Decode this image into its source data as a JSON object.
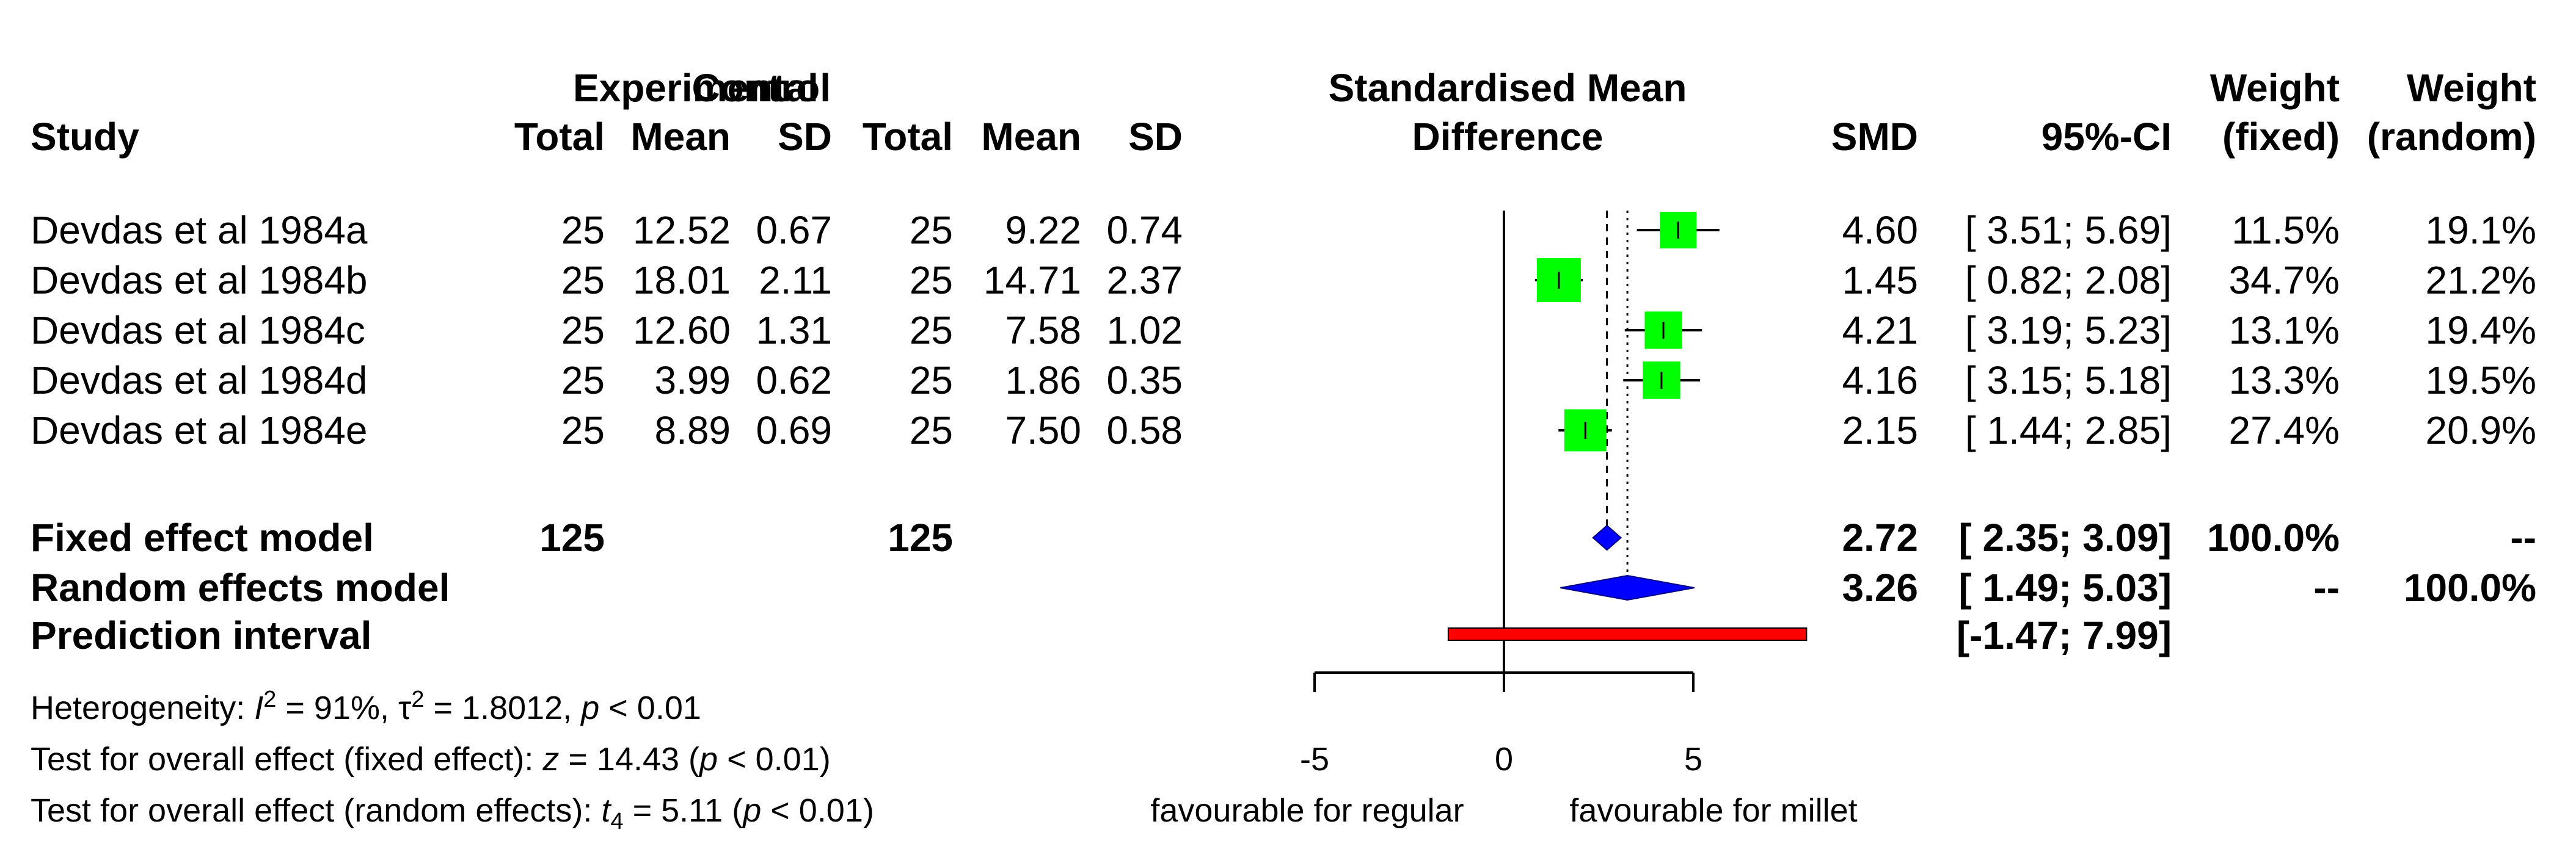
{
  "header": {
    "study": "Study",
    "experimental": "Experimental",
    "control": "Control",
    "total": "Total",
    "mean": "Mean",
    "sd": "SD",
    "smd_title_1": "Standardised Mean",
    "smd_title_2": "Difference",
    "smd": "SMD",
    "ci": "95%-CI",
    "weight": "Weight",
    "fixed": "(fixed)",
    "random": "(random)"
  },
  "chart_data": {
    "type": "forest",
    "xlim": [
      -5,
      8
    ],
    "axis_ticks": [
      -5,
      0,
      5
    ],
    "axis_tick_labels": [
      "-5",
      "0",
      "5"
    ],
    "reference_line": 0,
    "label_left": "favourable for regular",
    "label_right": "favourable for millet",
    "studies": [
      {
        "name": "Devdas et al 1984a",
        "e_total": "25",
        "e_mean": "12.52",
        "e_sd": "0.67",
        "c_total": "25",
        "c_mean": "9.22",
        "c_sd": "0.74",
        "smd": 4.6,
        "lower": 3.51,
        "upper": 5.69,
        "smd_label": "4.60",
        "ci_label": "[ 3.51; 5.69]",
        "w_fixed": "11.5%",
        "w_random": "19.1%",
        "weight_fixed": 11.5
      },
      {
        "name": "Devdas et al 1984b",
        "e_total": "25",
        "e_mean": "18.01",
        "e_sd": "2.11",
        "c_total": "25",
        "c_mean": "14.71",
        "c_sd": "2.37",
        "smd": 1.45,
        "lower": 0.82,
        "upper": 2.08,
        "smd_label": "1.45",
        "ci_label": "[ 0.82; 2.08]",
        "w_fixed": "34.7%",
        "w_random": "21.2%",
        "weight_fixed": 34.7
      },
      {
        "name": "Devdas et al 1984c",
        "e_total": "25",
        "e_mean": "12.60",
        "e_sd": "1.31",
        "c_total": "25",
        "c_mean": "7.58",
        "c_sd": "1.02",
        "smd": 4.21,
        "lower": 3.19,
        "upper": 5.23,
        "smd_label": "4.21",
        "ci_label": "[ 3.19; 5.23]",
        "w_fixed": "13.1%",
        "w_random": "19.4%",
        "weight_fixed": 13.1
      },
      {
        "name": "Devdas et al 1984d",
        "e_total": "25",
        "e_mean": "3.99",
        "e_sd": "0.62",
        "c_total": "25",
        "c_mean": "1.86",
        "c_sd": "0.35",
        "smd": 4.16,
        "lower": 3.15,
        "upper": 5.18,
        "smd_label": "4.16",
        "ci_label": "[ 3.15; 5.18]",
        "w_fixed": "13.3%",
        "w_random": "19.5%",
        "weight_fixed": 13.3
      },
      {
        "name": "Devdas et al 1984e",
        "e_total": "25",
        "e_mean": "8.89",
        "e_sd": "0.69",
        "c_total": "25",
        "c_mean": "7.50",
        "c_sd": "0.58",
        "smd": 2.15,
        "lower": 1.44,
        "upper": 2.85,
        "smd_label": "2.15",
        "ci_label": "[ 1.44; 2.85]",
        "w_fixed": "27.4%",
        "w_random": "20.9%",
        "weight_fixed": 27.4
      }
    ],
    "fixed": {
      "name": "Fixed effect model",
      "e_total": "125",
      "c_total": "125",
      "smd": 2.72,
      "lower": 2.35,
      "upper": 3.09,
      "smd_label": "2.72",
      "ci_label": "[ 2.35; 3.09]",
      "w_fixed": "100.0%",
      "w_random": "--"
    },
    "random": {
      "name": "Random effects model",
      "smd": 3.26,
      "lower": 1.49,
      "upper": 5.03,
      "smd_label": "3.26",
      "ci_label": "[ 1.49; 5.03]",
      "w_fixed": "--",
      "w_random": "100.0%"
    },
    "prediction": {
      "name": "Prediction interval",
      "lower": -1.47,
      "upper": 7.99,
      "ci_label": "[-1.47; 7.99]"
    },
    "heterogeneity": {
      "prefix": "Heterogeneity: ",
      "i2_sym": "I",
      "i2_val": " = 91%, ",
      "tau_sym": "τ",
      "tau_val": " = 1.8012, ",
      "p_sym": "p",
      "p_val": " < 0.01"
    },
    "test_fixed": {
      "prefix": "Test for overall effect (fixed effect): ",
      "stat_sym": "z",
      "stat_val": " = 14.43 (",
      "p_sym": "p",
      "p_val": " < 0.01)"
    },
    "test_random": {
      "prefix": "Test for overall effect (random effects): ",
      "stat_sym": "t",
      "stat_sub": "4",
      "stat_val": " = 5.11 (",
      "p_sym": "p",
      "p_val": " < 0.01)"
    },
    "colors": {
      "box": "#00ff00",
      "diamond": "#0000ff",
      "prediction": "#ff0000",
      "line": "#000000"
    }
  }
}
